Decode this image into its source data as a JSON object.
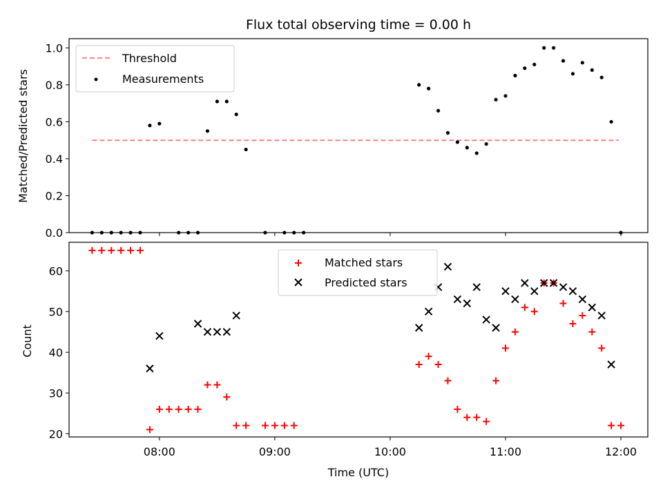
{
  "chart_data": [
    {
      "type": "scatter",
      "title": "Flux total observing time = 0.00 h",
      "xlabel": "",
      "ylabel": "Matched/Predicted stars",
      "xlim": [
        "07:13",
        "12:14"
      ],
      "ylim": [
        0,
        1.05
      ],
      "y_ticks": [
        "0.0",
        "0.2",
        "0.4",
        "0.6",
        "0.8",
        "1.0"
      ],
      "legend_position": "upper-left",
      "threshold": {
        "name": "Threshold",
        "y": 0.5,
        "x_start": "07:25",
        "x_end": "11:59",
        "color": "#ff7f7f"
      },
      "series": [
        {
          "name": "Measurements",
          "color": "#000000",
          "marker": "dot",
          "points": [
            [
              "07:25",
              0
            ],
            [
              "07:30",
              0
            ],
            [
              "07:35",
              0
            ],
            [
              "07:40",
              0
            ],
            [
              "07:45",
              0
            ],
            [
              "07:50",
              0
            ],
            [
              "07:55",
              0.58
            ],
            [
              "08:00",
              0.59
            ],
            [
              "08:10",
              0
            ],
            [
              "08:15",
              0
            ],
            [
              "08:20",
              0
            ],
            [
              "08:25",
              0.55
            ],
            [
              "08:30",
              0.71
            ],
            [
              "08:35",
              0.71
            ],
            [
              "08:40",
              0.64
            ],
            [
              "08:45",
              0.45
            ],
            [
              "08:55",
              0
            ],
            [
              "09:05",
              0
            ],
            [
              "09:10",
              0
            ],
            [
              "09:15",
              0
            ],
            [
              "10:15",
              0.8
            ],
            [
              "10:20",
              0.78
            ],
            [
              "10:25",
              0.66
            ],
            [
              "10:30",
              0.54
            ],
            [
              "10:35",
              0.49
            ],
            [
              "10:40",
              0.46
            ],
            [
              "10:45",
              0.43
            ],
            [
              "10:50",
              0.48
            ],
            [
              "10:55",
              0.72
            ],
            [
              "11:00",
              0.74
            ],
            [
              "11:05",
              0.85
            ],
            [
              "11:10",
              0.89
            ],
            [
              "11:15",
              0.91
            ],
            [
              "11:20",
              1.0
            ],
            [
              "11:25",
              1.0
            ],
            [
              "11:30",
              0.93
            ],
            [
              "11:35",
              0.86
            ],
            [
              "11:40",
              0.92
            ],
            [
              "11:45",
              0.88
            ],
            [
              "11:50",
              0.84
            ],
            [
              "11:55",
              0.6
            ],
            [
              "12:00",
              0
            ]
          ]
        }
      ]
    },
    {
      "type": "scatter",
      "title": "",
      "xlabel": "Time (UTC)",
      "ylabel": "Count",
      "xlim": [
        "07:13",
        "12:14"
      ],
      "ylim": [
        19.2,
        67
      ],
      "x_ticks": [
        "08:00",
        "09:00",
        "10:00",
        "11:00",
        "12:00"
      ],
      "y_ticks": [
        "20",
        "30",
        "40",
        "50",
        "60"
      ],
      "legend_position": "upper-center",
      "series": [
        {
          "name": "Matched stars",
          "color": "#ff0000",
          "marker": "plus",
          "points": [
            [
              "07:25",
              65
            ],
            [
              "07:30",
              65
            ],
            [
              "07:35",
              65
            ],
            [
              "07:40",
              65
            ],
            [
              "07:45",
              65
            ],
            [
              "07:50",
              65
            ],
            [
              "07:55",
              21
            ],
            [
              "08:00",
              26
            ],
            [
              "08:05",
              26
            ],
            [
              "08:10",
              26
            ],
            [
              "08:15",
              26
            ],
            [
              "08:20",
              26
            ],
            [
              "08:25",
              32
            ],
            [
              "08:30",
              32
            ],
            [
              "08:35",
              29
            ],
            [
              "08:40",
              22
            ],
            [
              "08:45",
              22
            ],
            [
              "08:55",
              22
            ],
            [
              "09:00",
              22
            ],
            [
              "09:05",
              22
            ],
            [
              "09:10",
              22
            ],
            [
              "10:15",
              37
            ],
            [
              "10:20",
              39
            ],
            [
              "10:25",
              37
            ],
            [
              "10:30",
              33
            ],
            [
              "10:35",
              26
            ],
            [
              "10:40",
              24
            ],
            [
              "10:45",
              24
            ],
            [
              "10:50",
              23
            ],
            [
              "10:55",
              33
            ],
            [
              "11:00",
              41
            ],
            [
              "11:05",
              45
            ],
            [
              "11:10",
              51
            ],
            [
              "11:15",
              50
            ],
            [
              "11:20",
              57
            ],
            [
              "11:25",
              57
            ],
            [
              "11:30",
              52
            ],
            [
              "11:35",
              47
            ],
            [
              "11:40",
              49
            ],
            [
              "11:45",
              45
            ],
            [
              "11:50",
              41
            ],
            [
              "11:55",
              22
            ],
            [
              "12:00",
              22
            ]
          ]
        },
        {
          "name": "Predicted stars",
          "color": "#000000",
          "marker": "x",
          "points": [
            [
              "07:55",
              36
            ],
            [
              "08:00",
              44
            ],
            [
              "08:20",
              47
            ],
            [
              "08:25",
              45
            ],
            [
              "08:30",
              45
            ],
            [
              "08:35",
              45
            ],
            [
              "08:40",
              49
            ],
            [
              "10:15",
              46
            ],
            [
              "10:20",
              50
            ],
            [
              "10:25",
              56
            ],
            [
              "10:30",
              61
            ],
            [
              "10:35",
              53
            ],
            [
              "10:40",
              52
            ],
            [
              "10:45",
              56
            ],
            [
              "10:50",
              48
            ],
            [
              "10:55",
              46
            ],
            [
              "11:00",
              55
            ],
            [
              "11:05",
              53
            ],
            [
              "11:10",
              57
            ],
            [
              "11:15",
              55
            ],
            [
              "11:20",
              57
            ],
            [
              "11:25",
              57
            ],
            [
              "11:30",
              56
            ],
            [
              "11:35",
              55
            ],
            [
              "11:40",
              53
            ],
            [
              "11:45",
              51
            ],
            [
              "11:50",
              49
            ],
            [
              "11:55",
              37
            ]
          ]
        }
      ]
    }
  ]
}
